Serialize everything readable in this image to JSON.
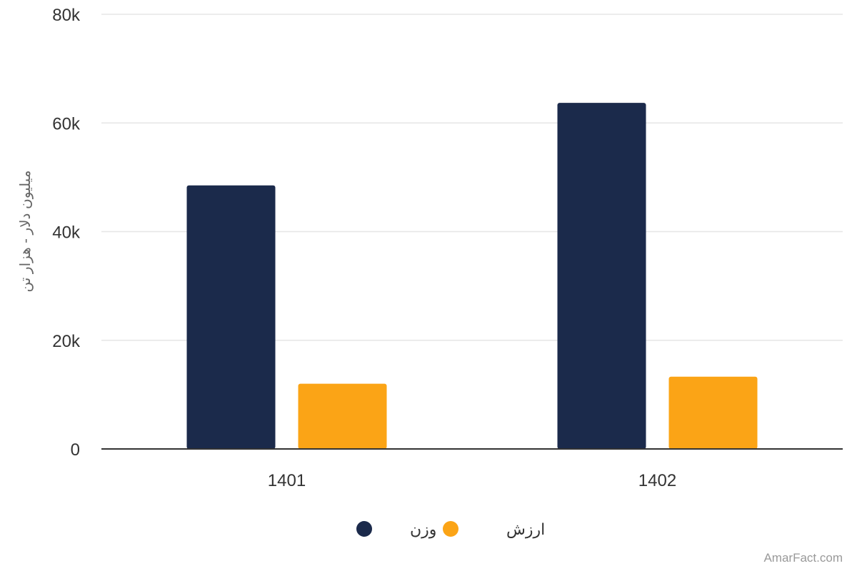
{
  "chart_data": {
    "type": "bar",
    "categories": [
      "1401",
      "1402"
    ],
    "series": [
      {
        "name": "وزن",
        "color": "#1b2a4b",
        "values": [
          48500,
          63700
        ]
      },
      {
        "name": "ارزش",
        "color": "#fba416",
        "values": [
          12000,
          13300
        ]
      }
    ],
    "ylabel": "میلیون دلار - هزار تن",
    "ylim": [
      0,
      80000
    ],
    "yticks": [
      0,
      20000,
      40000,
      60000,
      80000
    ],
    "ytick_labels": [
      "0",
      "20k",
      "40k",
      "60k",
      "80k"
    ],
    "grid": true,
    "legend_position": "bottom-center"
  },
  "credit": "AmarFact.com"
}
